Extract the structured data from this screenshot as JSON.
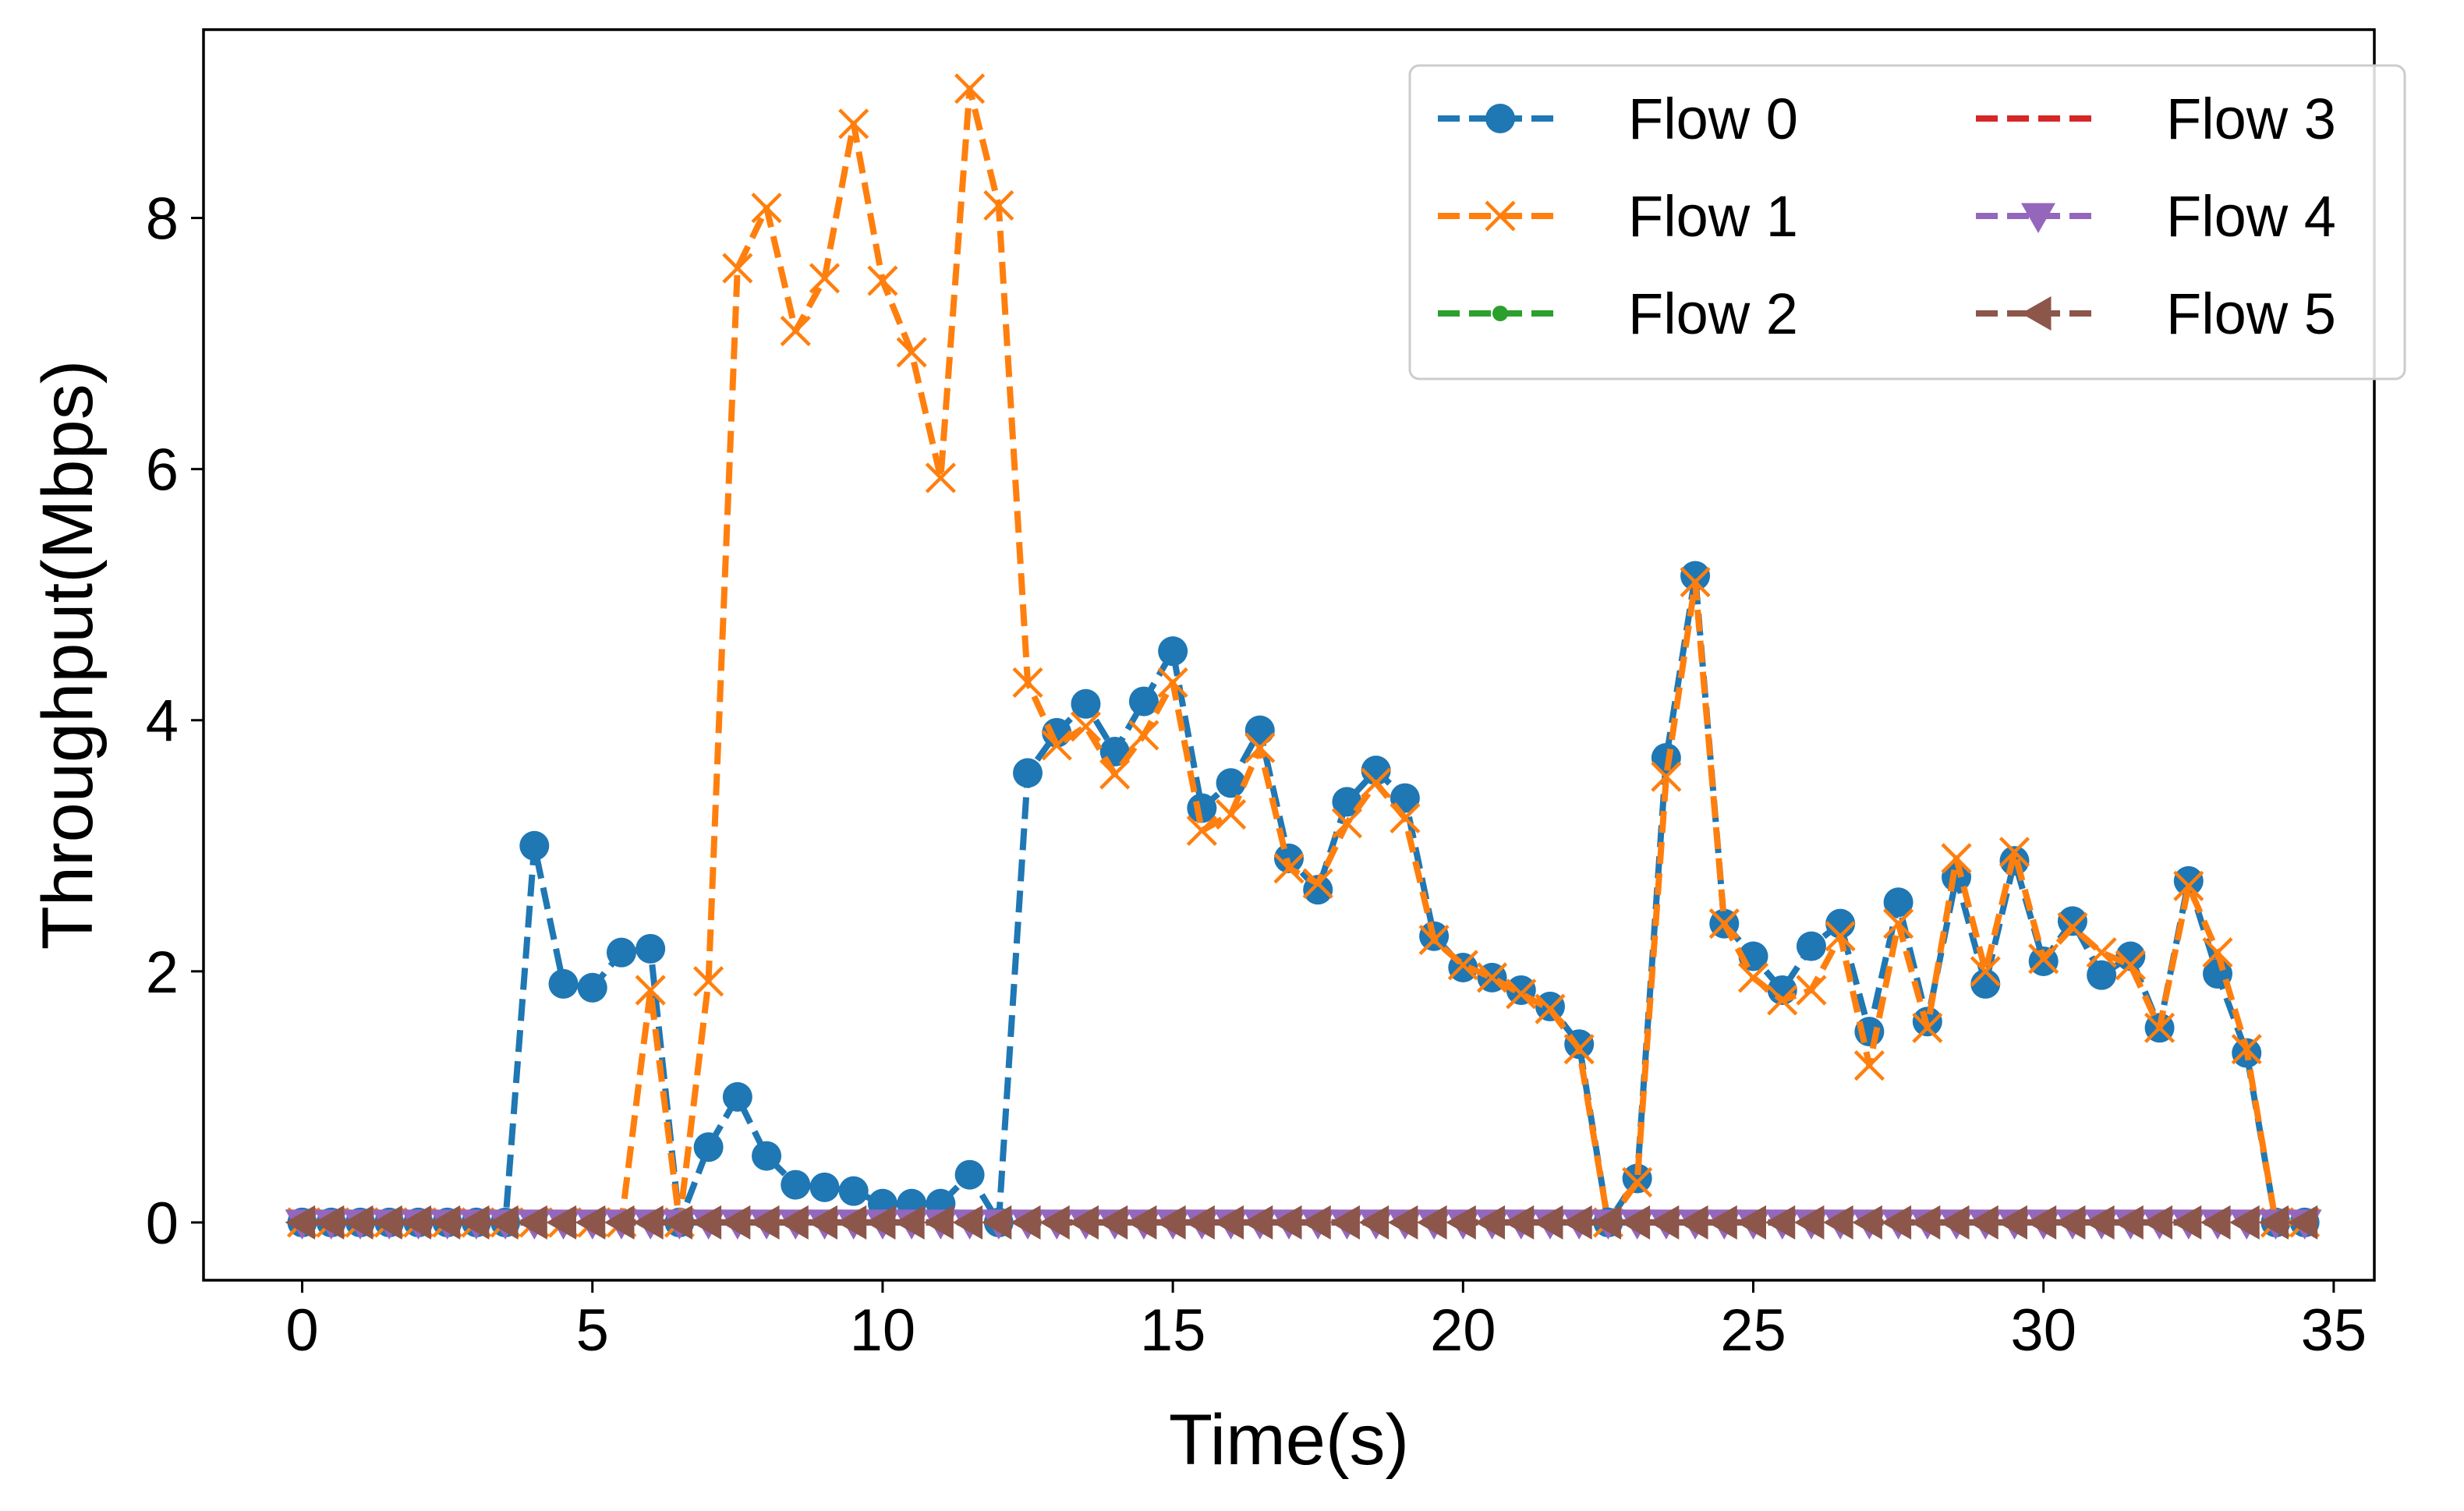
{
  "chart_data": {
    "type": "line",
    "title": "",
    "xlabel": "Time(s)",
    "ylabel": "Throughput(Mbps)",
    "xlim": [
      -1.7,
      35.7
    ],
    "ylim": [
      -0.46,
      9.5
    ],
    "xticks": [
      0,
      5,
      10,
      15,
      20,
      25,
      30,
      35
    ],
    "yticks": [
      0,
      2,
      4,
      6,
      8
    ],
    "grid": false,
    "legend": {
      "placement": "top-right",
      "columns": 2
    },
    "x": [
      0,
      0.5,
      1,
      1.5,
      2,
      2.5,
      3,
      3.5,
      4,
      4.5,
      5,
      5.5,
      6,
      6.5,
      7,
      7.5,
      8,
      8.5,
      9,
      9.5,
      10,
      10.5,
      11,
      11.5,
      12,
      12.5,
      13,
      13.5,
      14,
      14.5,
      15,
      15.5,
      16,
      16.5,
      17,
      17.5,
      18,
      18.5,
      19,
      19.5,
      20,
      20.5,
      21,
      21.5,
      22,
      22.5,
      23,
      23.5,
      24,
      24.5,
      25,
      25.5,
      26,
      26.5,
      27,
      27.5,
      28,
      28.5,
      29,
      29.5,
      30,
      30.5,
      31,
      31.5,
      32,
      32.5,
      33,
      33.5,
      34,
      34.5
    ],
    "series": [
      {
        "name": "Flow 0",
        "color": "#1f77b4",
        "marker": "circle",
        "values": [
          0,
          0,
          0,
          0,
          0,
          0,
          0,
          0,
          3.0,
          1.9,
          1.87,
          2.15,
          2.18,
          0,
          0.6,
          1.0,
          0.53,
          0.3,
          0.28,
          0.25,
          0.15,
          0.15,
          0.15,
          0.38,
          0,
          3.58,
          3.9,
          4.13,
          3.75,
          4.15,
          4.55,
          3.3,
          3.5,
          3.92,
          2.9,
          2.65,
          3.35,
          3.6,
          3.38,
          2.28,
          2.03,
          1.95,
          1.85,
          1.72,
          1.42,
          0,
          0.35,
          3.7,
          5.15,
          2.38,
          2.12,
          1.85,
          2.2,
          2.38,
          1.52,
          2.55,
          1.6,
          2.75,
          1.9,
          2.88,
          2.08,
          2.4,
          1.97,
          2.12,
          1.55,
          2.72,
          1.98,
          1.35,
          0,
          0
        ]
      },
      {
        "name": "Flow 1",
        "color": "#ff7f0e",
        "marker": "x",
        "values": [
          0,
          0,
          0,
          0,
          0,
          0,
          0,
          0,
          0,
          0,
          0,
          0,
          1.85,
          0,
          1.92,
          7.6,
          8.08,
          7.1,
          7.52,
          8.75,
          7.5,
          6.93,
          5.93,
          9.03,
          8.1,
          4.3,
          3.8,
          3.95,
          3.57,
          3.88,
          4.3,
          3.12,
          3.25,
          3.78,
          2.82,
          2.7,
          3.18,
          3.5,
          3.22,
          2.25,
          2.05,
          1.95,
          1.82,
          1.7,
          1.38,
          0,
          0.32,
          3.55,
          5.1,
          2.38,
          1.95,
          1.77,
          1.85,
          2.28,
          1.25,
          2.38,
          1.55,
          2.9,
          2.0,
          2.95,
          2.1,
          2.35,
          2.15,
          2.05,
          1.55,
          2.68,
          2.15,
          1.38,
          0,
          0
        ]
      },
      {
        "name": "Flow 2",
        "color": "#2ca02c",
        "marker": "point",
        "values": [
          0,
          0,
          0,
          0,
          0,
          0,
          0,
          0,
          0,
          0,
          0,
          0,
          0,
          0,
          0,
          0,
          0,
          0,
          0,
          0,
          0,
          0,
          0,
          0,
          0,
          0,
          0,
          0,
          0,
          0,
          0,
          0,
          0,
          0,
          0,
          0,
          0,
          0,
          0,
          0,
          0,
          0,
          0,
          0,
          0,
          0,
          0,
          0,
          0,
          0,
          0,
          0,
          0,
          0,
          0,
          0,
          0,
          0,
          0,
          0,
          0,
          0,
          0,
          0,
          0,
          0,
          0,
          0,
          0,
          0
        ]
      },
      {
        "name": "Flow 3",
        "color": "#d62728",
        "marker": "none",
        "values": [
          0,
          0,
          0,
          0,
          0,
          0,
          0,
          0,
          0,
          0,
          0,
          0,
          0,
          0,
          0,
          0,
          0,
          0,
          0,
          0,
          0,
          0,
          0,
          0,
          0,
          0,
          0,
          0,
          0,
          0,
          0,
          0,
          0,
          0,
          0,
          0,
          0,
          0,
          0,
          0,
          0,
          0,
          0,
          0,
          0,
          0,
          0,
          0,
          0,
          0,
          0,
          0,
          0,
          0,
          0,
          0,
          0,
          0,
          0,
          0,
          0,
          0,
          0,
          0,
          0,
          0,
          0,
          0,
          0,
          0
        ]
      },
      {
        "name": "Flow 4",
        "color": "#9467bd",
        "marker": "triangle-down",
        "values": [
          0,
          0,
          0,
          0,
          0,
          0,
          0,
          0,
          0,
          0,
          0,
          0,
          0,
          0,
          0,
          0,
          0,
          0,
          0,
          0,
          0,
          0,
          0,
          0,
          0,
          0,
          0,
          0,
          0,
          0,
          0,
          0,
          0,
          0,
          0,
          0,
          0,
          0,
          0,
          0,
          0,
          0,
          0,
          0,
          0,
          0,
          0,
          0,
          0,
          0,
          0,
          0,
          0,
          0,
          0,
          0,
          0,
          0,
          0,
          0,
          0,
          0,
          0,
          0,
          0,
          0,
          0,
          0,
          0,
          0
        ]
      },
      {
        "name": "Flow 5",
        "color": "#8c564b",
        "marker": "triangle-left",
        "values": [
          0,
          0,
          0,
          0,
          0,
          0,
          0,
          0,
          0,
          0,
          0,
          0,
          0,
          0,
          0,
          0,
          0,
          0,
          0,
          0,
          0,
          0,
          0,
          0,
          0,
          0,
          0,
          0,
          0,
          0,
          0,
          0,
          0,
          0,
          0,
          0,
          0,
          0,
          0,
          0,
          0,
          0,
          0,
          0,
          0,
          0,
          0,
          0,
          0,
          0,
          0,
          0,
          0,
          0,
          0,
          0,
          0,
          0,
          0,
          0,
          0,
          0,
          0,
          0,
          0,
          0,
          0,
          0,
          0,
          0
        ]
      }
    ]
  }
}
